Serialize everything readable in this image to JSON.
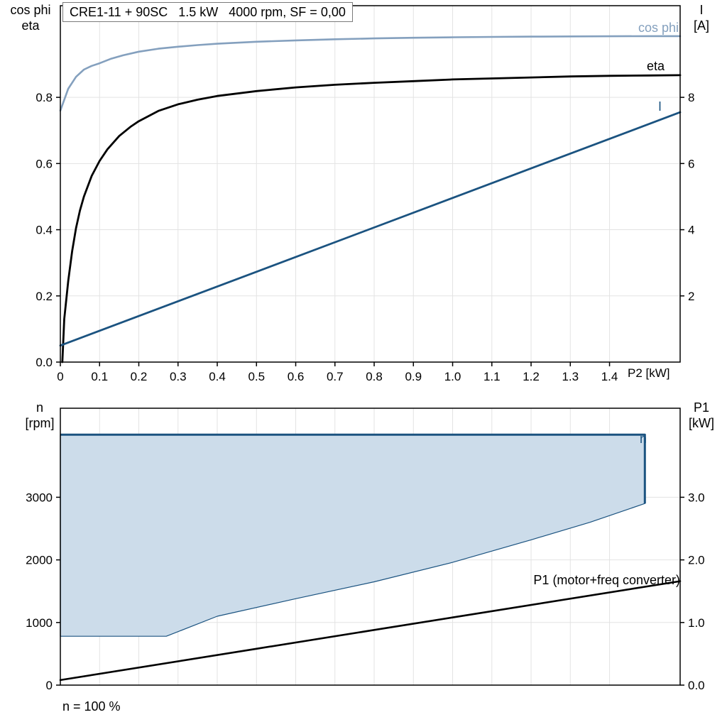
{
  "colors": {
    "cos_phi": "#84a0be",
    "eta": "#000000",
    "current": "#1b5380",
    "envelope_fill": "#ccdcea",
    "envelope_stroke": "#1b5380",
    "p1": "#000000",
    "grid": "#e3e3e3",
    "frame": "#000000"
  },
  "chart_data": [
    {
      "type": "line",
      "title": "CRE1-11 + 90SC   1.5 kW   4000 rpm, SF = 0,00",
      "x_axis": {
        "label": "P2 [kW]",
        "min": 0,
        "max": 1.58,
        "ticks": [
          {
            "v": 0,
            "label": "0"
          },
          {
            "v": 0.1,
            "label": "0.1"
          },
          {
            "v": 0.2,
            "label": "0.2"
          },
          {
            "v": 0.3,
            "label": "0.3"
          },
          {
            "v": 0.4,
            "label": "0.4"
          },
          {
            "v": 0.5,
            "label": "0.5"
          },
          {
            "v": 0.6,
            "label": "0.6"
          },
          {
            "v": 0.7,
            "label": "0.7"
          },
          {
            "v": 0.8,
            "label": "0.8"
          },
          {
            "v": 0.9,
            "label": "0.9"
          },
          {
            "v": 1.0,
            "label": "1.0"
          },
          {
            "v": 1.1,
            "label": "1.1"
          },
          {
            "v": 1.2,
            "label": "1.2"
          },
          {
            "v": 1.3,
            "label": "1.3"
          },
          {
            "v": 1.4,
            "label": "1.4"
          }
        ]
      },
      "y_left": {
        "label_lines": [
          "cos phi",
          "eta"
        ],
        "min": 0,
        "max": 1.077,
        "ticks": [
          {
            "v": 0,
            "label": "0.0"
          },
          {
            "v": 0.2,
            "label": "0.2"
          },
          {
            "v": 0.4,
            "label": "0.4"
          },
          {
            "v": 0.6,
            "label": "0.6"
          },
          {
            "v": 0.8,
            "label": "0.8"
          }
        ]
      },
      "y_right": {
        "label_lines": [
          "I",
          "[A]"
        ],
        "min": 0,
        "max": 10.77,
        "ticks": [
          {
            "v": 2,
            "label": "2"
          },
          {
            "v": 4,
            "label": "4"
          },
          {
            "v": 6,
            "label": "6"
          },
          {
            "v": 8,
            "label": "8"
          }
        ]
      },
      "series": [
        {
          "name": "cos phi",
          "axis": "left",
          "color_key": "cos_phi",
          "width": 2.6,
          "points": [
            [
              0,
              0.76
            ],
            [
              0.02,
              0.826
            ],
            [
              0.04,
              0.862
            ],
            [
              0.06,
              0.884
            ],
            [
              0.08,
              0.895
            ],
            [
              0.1,
              0.903
            ],
            [
              0.13,
              0.917
            ],
            [
              0.16,
              0.927
            ],
            [
              0.2,
              0.938
            ],
            [
              0.25,
              0.947
            ],
            [
              0.3,
              0.953
            ],
            [
              0.35,
              0.958
            ],
            [
              0.4,
              0.962
            ],
            [
              0.5,
              0.968
            ],
            [
              0.6,
              0.972
            ],
            [
              0.7,
              0.9755
            ],
            [
              0.8,
              0.978
            ],
            [
              0.9,
              0.98
            ],
            [
              1.0,
              0.9815
            ],
            [
              1.1,
              0.9825
            ],
            [
              1.2,
              0.9835
            ],
            [
              1.3,
              0.984
            ],
            [
              1.4,
              0.9845
            ],
            [
              1.5,
              0.985
            ],
            [
              1.58,
              0.985
            ]
          ]
        },
        {
          "name": "eta",
          "axis": "left",
          "color_key": "eta",
          "width": 2.8,
          "points": [
            [
              0.005,
              0.0
            ],
            [
              0.01,
              0.13
            ],
            [
              0.02,
              0.245
            ],
            [
              0.03,
              0.335
            ],
            [
              0.04,
              0.405
            ],
            [
              0.05,
              0.458
            ],
            [
              0.06,
              0.5
            ],
            [
              0.08,
              0.563
            ],
            [
              0.1,
              0.608
            ],
            [
              0.12,
              0.643
            ],
            [
              0.15,
              0.683
            ],
            [
              0.18,
              0.712
            ],
            [
              0.2,
              0.728
            ],
            [
              0.25,
              0.759
            ],
            [
              0.3,
              0.779
            ],
            [
              0.35,
              0.793
            ],
            [
              0.4,
              0.804
            ],
            [
              0.5,
              0.819
            ],
            [
              0.6,
              0.83
            ],
            [
              0.7,
              0.838
            ],
            [
              0.8,
              0.844
            ],
            [
              0.9,
              0.849
            ],
            [
              1.0,
              0.854
            ],
            [
              1.1,
              0.857
            ],
            [
              1.2,
              0.86
            ],
            [
              1.3,
              0.863
            ],
            [
              1.4,
              0.865
            ],
            [
              1.5,
              0.866
            ],
            [
              1.58,
              0.867
            ]
          ]
        },
        {
          "name": "I",
          "axis": "right",
          "color_key": "current",
          "width": 2.8,
          "points": [
            [
              0,
              0.5
            ],
            [
              0.5,
              2.73
            ],
            [
              1.0,
              4.96
            ],
            [
              1.58,
              7.55
            ]
          ]
        }
      ]
    },
    {
      "type": "area",
      "title": "",
      "x_axis": {
        "label": "",
        "min": 0,
        "max": 1.58,
        "ticks": [
          {
            "v": 0.1,
            "label": ""
          },
          {
            "v": 0.2,
            "label": ""
          },
          {
            "v": 0.3,
            "label": ""
          },
          {
            "v": 0.4,
            "label": ""
          },
          {
            "v": 0.5,
            "label": ""
          },
          {
            "v": 0.6,
            "label": ""
          },
          {
            "v": 0.7,
            "label": ""
          },
          {
            "v": 0.8,
            "label": ""
          },
          {
            "v": 0.9,
            "label": ""
          },
          {
            "v": 1.0,
            "label": ""
          },
          {
            "v": 1.1,
            "label": ""
          },
          {
            "v": 1.2,
            "label": ""
          },
          {
            "v": 1.3,
            "label": ""
          },
          {
            "v": 1.4,
            "label": ""
          }
        ]
      },
      "y_left": {
        "label_lines": [
          "n",
          "[rpm]"
        ],
        "min": 0,
        "max": 4422,
        "ticks": [
          {
            "v": 0,
            "label": "0"
          },
          {
            "v": 1000,
            "label": "1000"
          },
          {
            "v": 2000,
            "label": "2000"
          },
          {
            "v": 3000,
            "label": "3000"
          }
        ]
      },
      "y_right": {
        "label_lines": [
          "P1",
          "[kW]"
        ],
        "min": 0,
        "max": 4.422,
        "ticks": [
          {
            "v": 0,
            "label": "0.0"
          },
          {
            "v": 1,
            "label": "1.0"
          },
          {
            "v": 2,
            "label": "2.0"
          },
          {
            "v": 3,
            "label": "3.0"
          }
        ]
      },
      "envelope": {
        "label": "n",
        "axis": "left",
        "fill_key": "envelope_fill",
        "stroke_key": "envelope_stroke",
        "max_speed_rpm": 4000,
        "min_speed_rpm": 780,
        "polygon": [
          [
            0,
            4000
          ],
          [
            1.49,
            4000
          ],
          [
            1.49,
            2900
          ],
          [
            1.35,
            2600
          ],
          [
            1.2,
            2320
          ],
          [
            1.0,
            1960
          ],
          [
            0.8,
            1650
          ],
          [
            0.6,
            1380
          ],
          [
            0.4,
            1100
          ],
          [
            0.27,
            780
          ],
          [
            0,
            780
          ]
        ],
        "top_line": [
          [
            0,
            4000
          ],
          [
            1.49,
            4000
          ],
          [
            1.49,
            2900
          ]
        ]
      },
      "series": [
        {
          "name": "P1 (motor+freq converter)",
          "axis": "right",
          "color_key": "p1",
          "width": 2.6,
          "points": [
            [
              0,
              0.08
            ],
            [
              0.5,
              0.58
            ],
            [
              1.0,
              1.08
            ],
            [
              1.58,
              1.66
            ]
          ]
        }
      ],
      "footnote": "n = 100 %"
    }
  ]
}
